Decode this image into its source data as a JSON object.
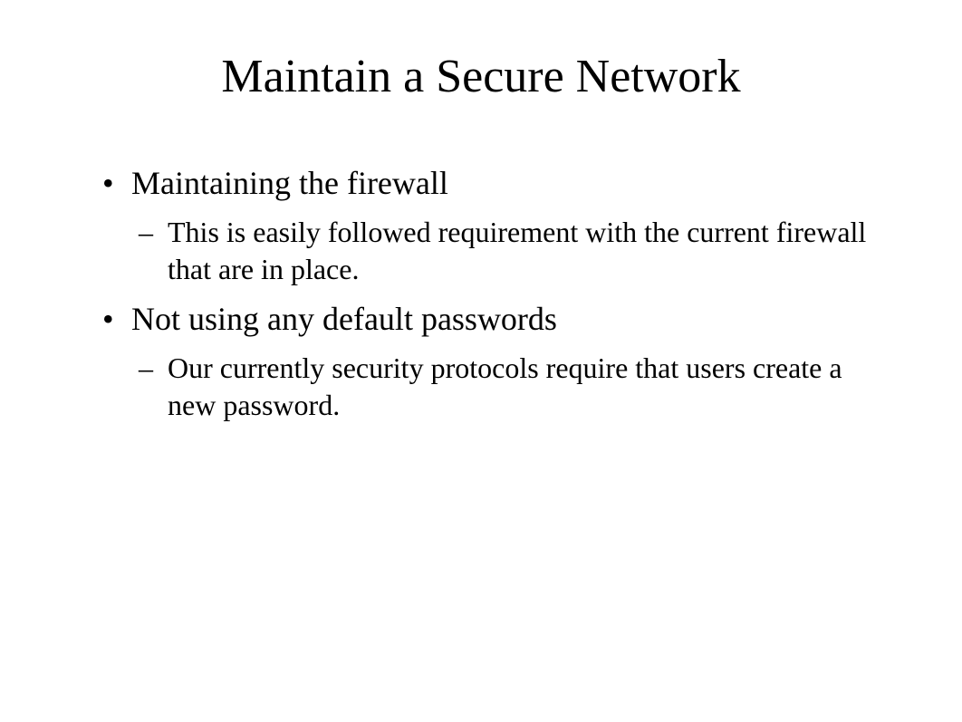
{
  "slide": {
    "title": "Maintain a Secure Network",
    "bullets": [
      {
        "text": "Maintaining the firewall",
        "subbullets": [
          {
            "text": "This is easily followed requirement with the current firewall that are in place."
          }
        ]
      },
      {
        "text": "Not using any default passwords",
        "subbullets": [
          {
            "text": "Our currently security protocols require that users create a new password."
          }
        ]
      }
    ]
  },
  "style": {
    "background_color": "#ffffff",
    "text_color": "#000000",
    "font_family": "Times New Roman",
    "title_fontsize": 52,
    "level1_fontsize": 36,
    "level2_fontsize": 32,
    "level1_marker": "•",
    "level2_marker": "–"
  }
}
